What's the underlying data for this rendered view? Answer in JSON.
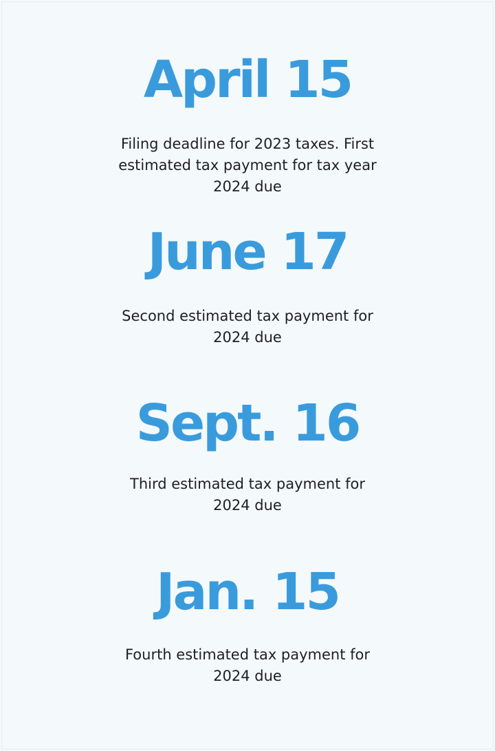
{
  "accent_color": "#3a9bdc",
  "deadlines": [
    {
      "date": "April 15",
      "description_lines": [
        "Filing deadline for 2023 taxes. First",
        "estimated tax payment for tax year",
        "2024 due"
      ]
    },
    {
      "date": "June 17",
      "description_lines": [
        "Second estimated tax payment for",
        "2024 due"
      ]
    },
    {
      "date": "Sept. 16",
      "description_lines": [
        "Third estimated tax payment for",
        "2024 due"
      ]
    },
    {
      "date": "Jan. 15",
      "description_lines": [
        "Fourth estimated tax payment for",
        "2024 due"
      ]
    }
  ]
}
